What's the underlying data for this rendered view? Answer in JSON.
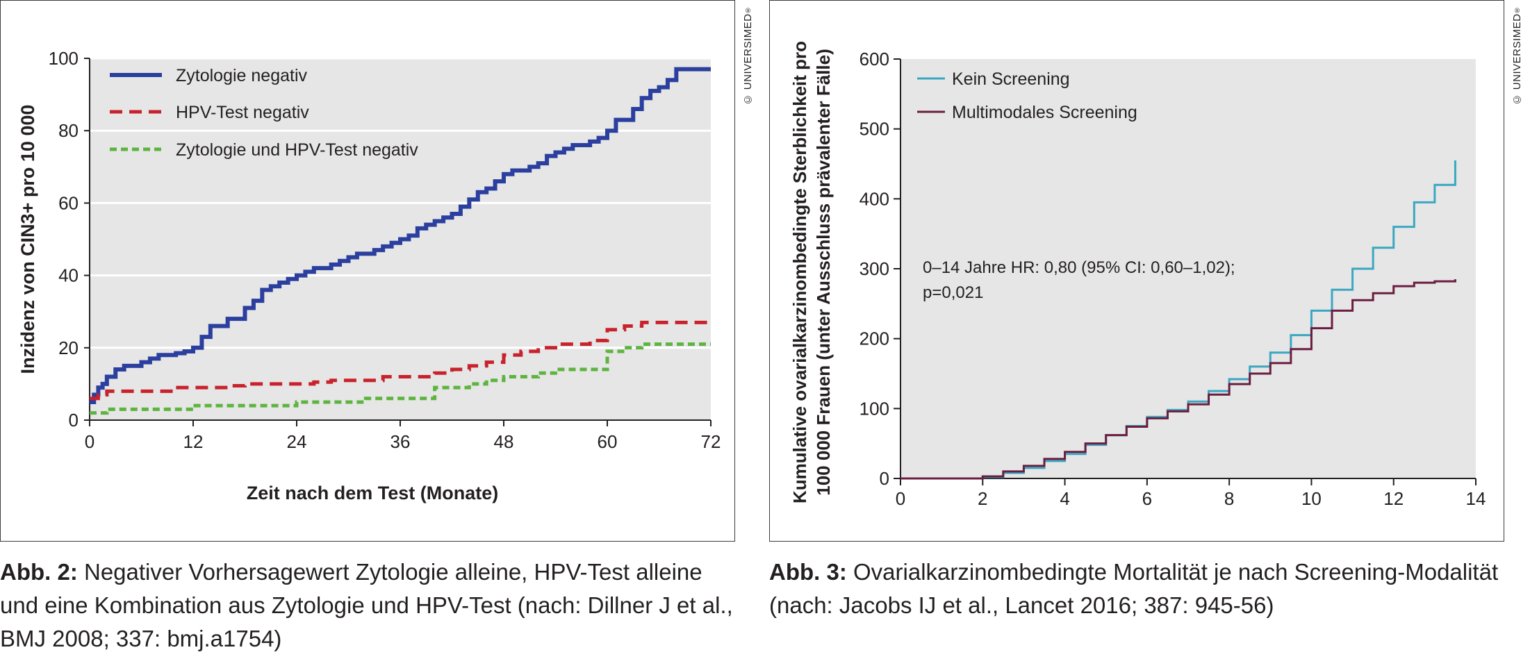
{
  "copyright": "© UNIVERSIMED",
  "copyright_mark": "®",
  "figures": [
    {
      "caption_label": "Abb. 2:",
      "caption_text": "Negativer Vorhersagewert Zytologie alleine, HPV-Test alleine und eine Kombination aus Zytologie und HPV-Test (nach: Dillner J et al., BMJ 2008; 337: bmj.a1754)"
    },
    {
      "caption_label": "Abb. 3:",
      "caption_text": "Ovarialkarzinombedingte Mortalität je nach Screening-Modalität (nach: Jacobs IJ et al., Lancet 2016; 387: 945-56)"
    }
  ],
  "chart_data": [
    {
      "type": "line",
      "step": true,
      "xlabel": "Zeit nach dem Test (Monate)",
      "ylabel": "Inzidenz von CIN3+ pro 10 000",
      "xlim": [
        0,
        72
      ],
      "ylim": [
        0,
        100
      ],
      "xticks": [
        "0",
        "12",
        "24",
        "36",
        "48",
        "60",
        "72"
      ],
      "yticks": [
        "0",
        "20",
        "40",
        "60",
        "80",
        "100"
      ],
      "grid": "horizontal",
      "legend_position": "top-left",
      "series": [
        {
          "name": "Zytologie negativ",
          "color": "#2b3f9e",
          "dash": "solid",
          "x": [
            0,
            0.5,
            1,
            1.5,
            2,
            3,
            4,
            5,
            6,
            7,
            8,
            9,
            10,
            11,
            12,
            13,
            14,
            15,
            16,
            17,
            18,
            19,
            20,
            21,
            22,
            23,
            24,
            25,
            26,
            27,
            28,
            29,
            30,
            31,
            32,
            33,
            34,
            35,
            36,
            37,
            38,
            39,
            40,
            41,
            42,
            43,
            44,
            45,
            46,
            47,
            48,
            49,
            50,
            51,
            52,
            53,
            54,
            55,
            56,
            57,
            58,
            59,
            60,
            61,
            62,
            63,
            64,
            65,
            66,
            67,
            68,
            69,
            70,
            71,
            72
          ],
          "y": [
            5,
            7,
            9,
            10,
            12,
            14,
            15,
            15,
            16,
            17,
            18,
            18,
            18.5,
            19,
            20,
            23,
            26,
            26,
            28,
            28,
            31,
            33,
            36,
            37,
            38,
            39,
            40,
            41,
            42,
            42,
            43,
            44,
            45,
            46,
            46,
            47,
            48,
            49,
            50,
            51,
            53,
            54,
            55,
            56,
            57,
            59,
            61,
            63,
            64,
            66,
            68,
            69,
            69,
            70,
            71,
            73,
            74,
            75,
            76,
            76,
            77,
            78,
            80,
            83,
            83,
            86,
            89,
            91,
            92,
            94,
            97,
            97,
            97,
            97,
            97
          ]
        },
        {
          "name": "HPV-Test negativ",
          "color": "#c8232c",
          "dash": "dashed",
          "x": [
            0,
            1,
            2,
            4,
            6,
            8,
            10,
            12,
            14,
            16,
            18,
            20,
            22,
            24,
            26,
            28,
            30,
            32,
            34,
            36,
            38,
            40,
            42,
            44,
            46,
            48,
            50,
            52,
            54,
            56,
            58,
            60,
            62,
            64,
            66,
            68,
            70,
            72
          ],
          "y": [
            6,
            7,
            8,
            8,
            8,
            8,
            9,
            9,
            9,
            9.5,
            10,
            10,
            10,
            10,
            10.5,
            11,
            11,
            11,
            12,
            12,
            12,
            13,
            14,
            15,
            16,
            18,
            19,
            20,
            21,
            21,
            22,
            25,
            26,
            27,
            27,
            27,
            27,
            27
          ]
        },
        {
          "name": "Zytologie und HPV-Test negativ",
          "color": "#5db43e",
          "dash": "dashed",
          "x": [
            0,
            1,
            2,
            4,
            6,
            8,
            10,
            12,
            14,
            16,
            18,
            20,
            22,
            24,
            26,
            28,
            30,
            32,
            34,
            36,
            38,
            40,
            42,
            44,
            46,
            48,
            50,
            52,
            54,
            56,
            58,
            60,
            62,
            64,
            66,
            68,
            70,
            72
          ],
          "y": [
            2,
            2,
            3,
            3,
            3,
            3,
            3,
            4,
            4,
            4,
            4,
            4,
            4,
            5,
            5,
            5,
            5,
            6,
            6,
            6,
            6,
            9,
            9,
            10,
            11,
            12,
            12,
            13,
            14,
            14,
            14,
            19,
            20,
            21,
            21,
            21,
            21,
            21
          ]
        }
      ]
    },
    {
      "type": "line",
      "step": true,
      "xlabel": "",
      "ylabel": "Kumulative ovarialkarzinombedingte Sterblichkeit pro 100 000 Frauen (unter Ausschluss prävalenter Fälle)",
      "ylabel_lines": [
        "Kumulative ovarialkarzinombedingte Sterblichkeit pro",
        "100 000 Frauen (unter Ausschluss prävalenter Fälle)"
      ],
      "xlim": [
        0,
        14
      ],
      "ylim": [
        0,
        600
      ],
      "xticks": [
        "0",
        "2",
        "4",
        "6",
        "8",
        "10",
        "12",
        "14"
      ],
      "yticks": [
        "0",
        "100",
        "200",
        "300",
        "400",
        "500",
        "600"
      ],
      "grid": "none",
      "legend_position": "top-left",
      "annotation": "0–14 Jahre HR: 0,80 (95% CI: 0,60–1,02); p=0,021",
      "annotation_lines": [
        "0–14 Jahre HR: 0,80 (95% CI: 0,60–1,02);",
        "p=0,021"
      ],
      "series": [
        {
          "name": "Kein Screening",
          "color": "#3aa7c1",
          "x": [
            0,
            1,
            2,
            2.5,
            3,
            3.5,
            4,
            4.5,
            5,
            5.5,
            6,
            6.5,
            7,
            7.5,
            8,
            8.5,
            9,
            9.5,
            10,
            10.5,
            11,
            11.5,
            12,
            12.5,
            13,
            13.5
          ],
          "y": [
            0,
            0,
            2,
            8,
            15,
            25,
            35,
            48,
            62,
            75,
            88,
            98,
            110,
            125,
            142,
            160,
            180,
            205,
            240,
            270,
            300,
            330,
            360,
            395,
            420,
            455
          ]
        },
        {
          "name": "Multimodales Screening",
          "color": "#6b1d3f",
          "x": [
            0,
            1,
            2,
            2.5,
            3,
            3.5,
            4,
            4.5,
            5,
            5.5,
            6,
            6.5,
            7,
            7.5,
            8,
            8.5,
            9,
            9.5,
            10,
            10.5,
            11,
            11.5,
            12,
            12.5,
            13,
            13.5
          ],
          "y": [
            0,
            0,
            3,
            10,
            18,
            28,
            38,
            50,
            62,
            74,
            86,
            96,
            106,
            120,
            135,
            150,
            165,
            185,
            215,
            240,
            255,
            265,
            275,
            280,
            282,
            285
          ]
        }
      ]
    }
  ]
}
